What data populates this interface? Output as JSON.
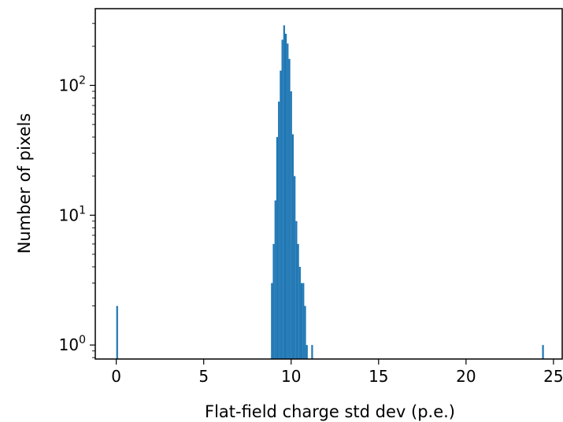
{
  "chart_data": {
    "type": "bar",
    "xlabel": "Flat-field charge std dev (p.e.)",
    "ylabel": "Number of pixels",
    "xlim": [
      -1.2,
      25.5
    ],
    "ylim": [
      0.78,
      390
    ],
    "yscale": "log",
    "x_ticks": [
      0,
      5,
      10,
      15,
      20,
      25
    ],
    "x_tick_labels": [
      "0",
      "5",
      "10",
      "15",
      "20",
      "25"
    ],
    "y_ticks": [
      1,
      10,
      100
    ],
    "y_tick_labels": [
      {
        "base": "10",
        "exp": "0"
      },
      {
        "base": "10",
        "exp": "1"
      },
      {
        "base": "10",
        "exp": "2"
      }
    ],
    "bar_color": "#1f77b4",
    "bins": [
      {
        "x0": 0.0,
        "x1": 0.1,
        "value": 2
      },
      {
        "x0": 8.85,
        "x1": 8.95,
        "value": 3
      },
      {
        "x0": 8.95,
        "x1": 9.05,
        "value": 6
      },
      {
        "x0": 9.05,
        "x1": 9.15,
        "value": 13
      },
      {
        "x0": 9.15,
        "x1": 9.25,
        "value": 40
      },
      {
        "x0": 9.25,
        "x1": 9.35,
        "value": 75
      },
      {
        "x0": 9.35,
        "x1": 9.45,
        "value": 130
      },
      {
        "x0": 9.45,
        "x1": 9.55,
        "value": 225
      },
      {
        "x0": 9.55,
        "x1": 9.65,
        "value": 290
      },
      {
        "x0": 9.65,
        "x1": 9.75,
        "value": 250
      },
      {
        "x0": 9.75,
        "x1": 9.85,
        "value": 210
      },
      {
        "x0": 9.85,
        "x1": 9.95,
        "value": 160
      },
      {
        "x0": 9.95,
        "x1": 10.05,
        "value": 90
      },
      {
        "x0": 10.05,
        "x1": 10.15,
        "value": 42
      },
      {
        "x0": 10.15,
        "x1": 10.25,
        "value": 20
      },
      {
        "x0": 10.25,
        "x1": 10.35,
        "value": 9
      },
      {
        "x0": 10.35,
        "x1": 10.45,
        "value": 6
      },
      {
        "x0": 10.45,
        "x1": 10.55,
        "value": 4
      },
      {
        "x0": 10.55,
        "x1": 10.65,
        "value": 3
      },
      {
        "x0": 10.65,
        "x1": 10.75,
        "value": 3
      },
      {
        "x0": 10.75,
        "x1": 10.85,
        "value": 2
      },
      {
        "x0": 10.85,
        "x1": 10.95,
        "value": 1
      },
      {
        "x0": 11.15,
        "x1": 11.25,
        "value": 1
      },
      {
        "x0": 24.35,
        "x1": 24.45,
        "value": 1
      }
    ]
  }
}
